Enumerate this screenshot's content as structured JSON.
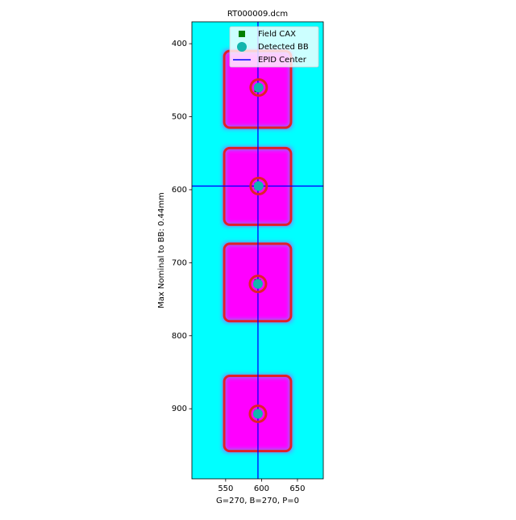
{
  "chart_data": {
    "type": "image",
    "title": "RT000009.dcm",
    "xlabel": "G=270, B=270, P=0",
    "ylabel": "Max Nominal to BB: 0.44mm",
    "xlim": [
      503,
      686
    ],
    "ylim": [
      996,
      370
    ],
    "xticks": [
      550,
      600,
      650
    ],
    "yticks": [
      400,
      500,
      600,
      700,
      800,
      900
    ],
    "background_color": "#00ffff",
    "field_color": "#ff00ff",
    "contour_color": "#e0202a",
    "fields": [
      {
        "x": [
          548,
          641
        ],
        "y": [
          410,
          515
        ]
      },
      {
        "x": [
          548,
          641
        ],
        "y": [
          543,
          648
        ]
      },
      {
        "x": [
          548,
          641
        ],
        "y": [
          674,
          780
        ]
      },
      {
        "x": [
          548,
          641
        ],
        "y": [
          855,
          958
        ]
      }
    ],
    "legend_position": "upper right",
    "series": [
      {
        "name": "Field CAX",
        "color": "#008000",
        "x": [
          594.5,
          594.5,
          594.5,
          594.5
        ],
        "values": [
          462,
          595,
          727,
          906
        ]
      },
      {
        "name": "Detected BB",
        "color": "#12b5ad",
        "x": [
          596,
          596,
          595,
          595
        ],
        "values": [
          460,
          595,
          729,
          907
        ]
      }
    ],
    "epid_center": {
      "name": "EPID Center",
      "color": "#0000ff",
      "x": 595,
      "y": 595
    }
  }
}
